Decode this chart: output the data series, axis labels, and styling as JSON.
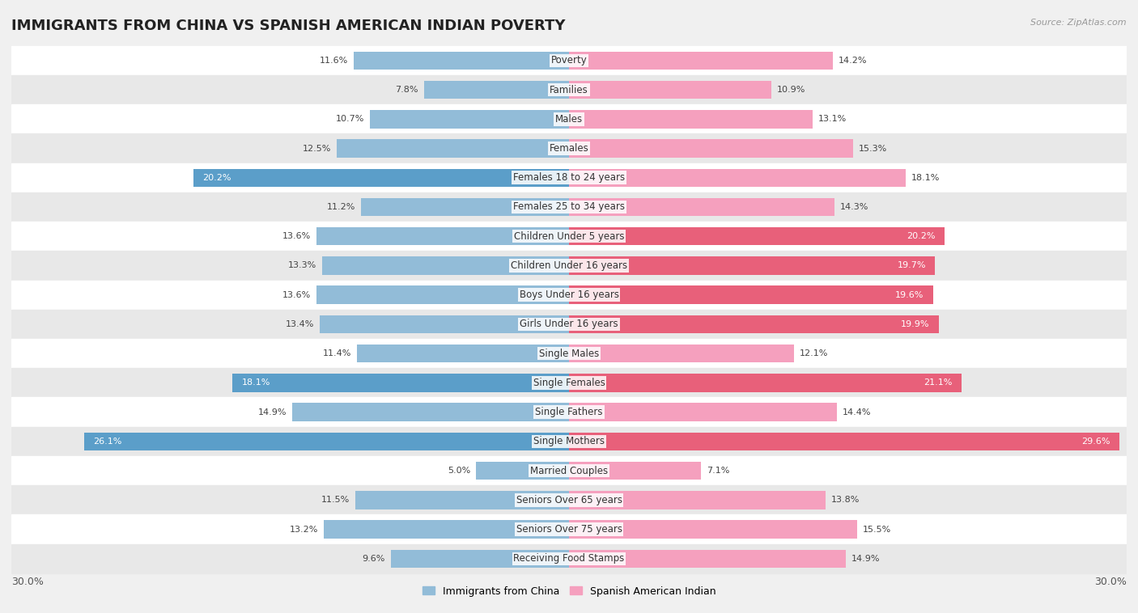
{
  "title": "IMMIGRANTS FROM CHINA VS SPANISH AMERICAN INDIAN POVERTY",
  "source": "Source: ZipAtlas.com",
  "categories": [
    "Poverty",
    "Families",
    "Males",
    "Females",
    "Females 18 to 24 years",
    "Females 25 to 34 years",
    "Children Under 5 years",
    "Children Under 16 years",
    "Boys Under 16 years",
    "Girls Under 16 years",
    "Single Males",
    "Single Females",
    "Single Fathers",
    "Single Mothers",
    "Married Couples",
    "Seniors Over 65 years",
    "Seniors Over 75 years",
    "Receiving Food Stamps"
  ],
  "china_values": [
    11.6,
    7.8,
    10.7,
    12.5,
    20.2,
    11.2,
    13.6,
    13.3,
    13.6,
    13.4,
    11.4,
    18.1,
    14.9,
    26.1,
    5.0,
    11.5,
    13.2,
    9.6
  ],
  "spanish_values": [
    14.2,
    10.9,
    13.1,
    15.3,
    18.1,
    14.3,
    20.2,
    19.7,
    19.6,
    19.9,
    12.1,
    21.1,
    14.4,
    29.6,
    7.1,
    13.8,
    15.5,
    14.9
  ],
  "china_color": "#92bcd8",
  "spanish_color": "#f5a0be",
  "china_highlight_color": "#5b9ec9",
  "spanish_highlight_color": "#e8607a",
  "highlight_china": [
    4,
    11,
    13
  ],
  "highlight_spanish": [
    6,
    7,
    8,
    9,
    11,
    13
  ],
  "bg_color": "#f0f0f0",
  "row_colors": [
    "#ffffff",
    "#e8e8e8"
  ],
  "axis_max": 30.0,
  "legend_china": "Immigrants from China",
  "legend_spanish": "Spanish American Indian",
  "title_fontsize": 13,
  "cat_fontsize": 8.5,
  "value_fontsize": 8.0
}
